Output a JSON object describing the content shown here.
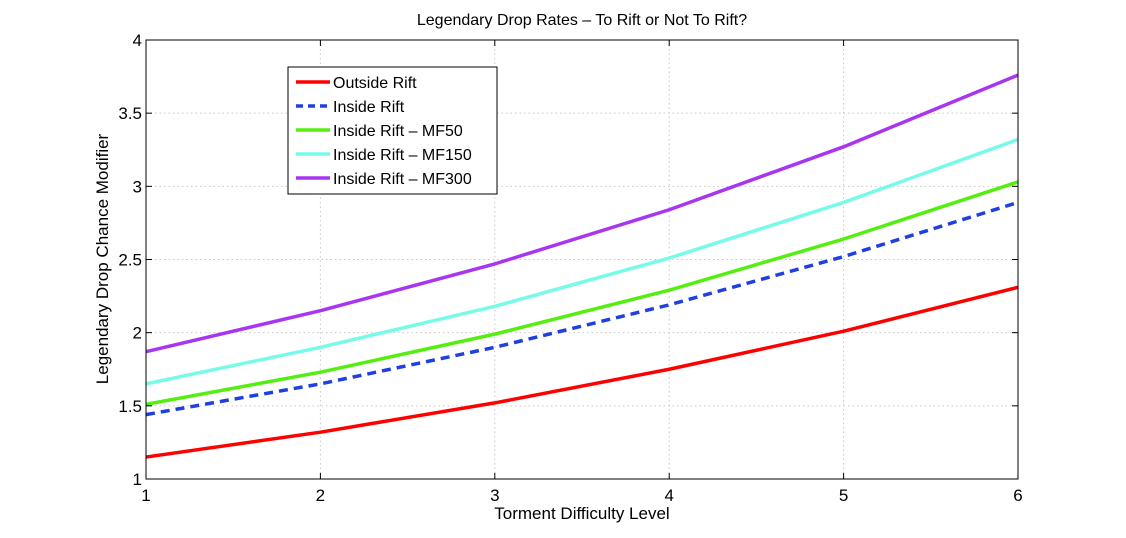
{
  "chart_data": {
    "type": "line",
    "title": "Legendary Drop Rates – To Rift or Not To Rift?",
    "xlabel": "Torment Difficulty Level",
    "ylabel": "Legendary Drop Chance Modifier",
    "xlim": [
      1,
      6
    ],
    "ylim": [
      1,
      4
    ],
    "xticks": [
      1,
      2,
      3,
      4,
      5,
      6
    ],
    "yticks": [
      1,
      1.5,
      2,
      2.5,
      3,
      3.5,
      4
    ],
    "grid": true,
    "legend_position": "top-left",
    "x": [
      1,
      2,
      3,
      4,
      5,
      6
    ],
    "series": [
      {
        "name": "Outside Rift",
        "color": "#ff0000",
        "dash": "solid",
        "values": [
          1.15,
          1.32,
          1.52,
          1.75,
          2.01,
          2.31
        ]
      },
      {
        "name": "Inside Rift",
        "color": "#1f3fe0",
        "dash": "dashed",
        "values": [
          1.44,
          1.65,
          1.9,
          2.19,
          2.52,
          2.89
        ]
      },
      {
        "name": "Inside Rift – MF50",
        "color": "#55ee11",
        "dash": "solid",
        "values": [
          1.51,
          1.73,
          1.99,
          2.29,
          2.64,
          3.03
        ]
      },
      {
        "name": "Inside Rift – MF150",
        "color": "#77fbe9",
        "dash": "solid",
        "values": [
          1.65,
          1.9,
          2.18,
          2.51,
          2.89,
          3.32
        ]
      },
      {
        "name": "Inside Rift – MF300",
        "color": "#a836f0",
        "dash": "solid",
        "values": [
          1.87,
          2.15,
          2.47,
          2.84,
          3.27,
          3.76
        ]
      }
    ]
  }
}
